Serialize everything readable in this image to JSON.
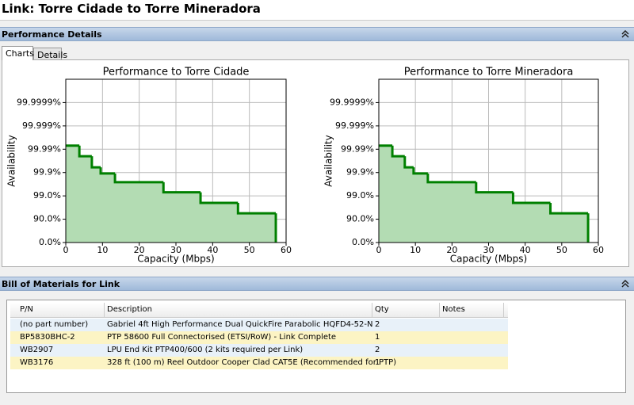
{
  "header": {
    "title": "Link: Torre Cidade to Torre Mineradora"
  },
  "sections": [
    {
      "title": "Performance Details"
    },
    {
      "title": "Bill of Materials for Link"
    }
  ],
  "tabs": [
    "Charts",
    "Details"
  ],
  "chart_data": [
    {
      "type": "line",
      "step": "post",
      "title": "Performance to Torre Cidade",
      "x_label": "Capacity (Mbps)",
      "y_label": "Availability",
      "yscale": "unavailability-log",
      "x": [
        0,
        3.7,
        7.1,
        9.5,
        13.4,
        26.6,
        36.7,
        46.9,
        57.2
      ],
      "series": [
        {
          "color": "#008000",
          "fill": "#b3dcb3",
          "values": [
            99.993,
            99.98,
            99.94,
            99.89,
            99.74,
            99.3,
            98.0,
            94.4,
            0
          ]
        }
      ],
      "xlim": [
        0,
        60
      ],
      "xticks": [
        0,
        10,
        20,
        30,
        40,
        50,
        60
      ],
      "ylim": [
        0,
        99.99999
      ],
      "yticks": [
        {
          "value": 0,
          "label": "0.0%"
        },
        {
          "value": 90,
          "label": "90.0%"
        },
        {
          "value": 99,
          "label": "99.0%"
        },
        {
          "value": 99.9,
          "label": "99.9%"
        },
        {
          "value": 99.99,
          "label": "99.99%"
        },
        {
          "value": 99.999,
          "label": "99.999%"
        },
        {
          "value": 99.9999,
          "label": "99.9999%"
        }
      ],
      "grid": true
    },
    {
      "type": "line",
      "step": "post",
      "title": "Performance to Torre Mineradora",
      "x_label": "Capacity (Mbps)",
      "y_label": "Availability",
      "yscale": "unavailability-log",
      "x": [
        0,
        3.7,
        7.1,
        9.5,
        13.4,
        26.6,
        36.7,
        46.9,
        57.2
      ],
      "series": [
        {
          "color": "#008000",
          "fill": "#b3dcb3",
          "values": [
            99.993,
            99.98,
            99.94,
            99.89,
            99.74,
            99.3,
            98.0,
            94.4,
            0
          ]
        }
      ],
      "xlim": [
        0,
        60
      ],
      "xticks": [
        0,
        10,
        20,
        30,
        40,
        50,
        60
      ],
      "ylim": [
        0,
        99.99999
      ],
      "yticks": [
        {
          "value": 0,
          "label": "0.0%"
        },
        {
          "value": 90,
          "label": "90.0%"
        },
        {
          "value": 99,
          "label": "99.0%"
        },
        {
          "value": 99.9,
          "label": "99.9%"
        },
        {
          "value": 99.99,
          "label": "99.99%"
        },
        {
          "value": 99.999,
          "label": "99.999%"
        },
        {
          "value": 99.9999,
          "label": "99.9999%"
        }
      ],
      "grid": true
    }
  ],
  "table": {
    "columns": [
      "P/N",
      "Description",
      "Qty",
      "Notes"
    ],
    "rows": [
      [
        "(no part number)",
        "Gabriel 4ft High Performance Dual QuickFire Parabolic HQFD4-52-N",
        "2"
      ],
      [
        "BP5830BHC-2",
        "PTP 58600 Full Connectorised (ETSI/RoW) - Link Complete",
        "1"
      ],
      [
        "WB2907",
        "LPU End Kit PTP400/600 (2 kits required per Link)",
        "2"
      ],
      [
        "WB3176",
        "328 ft (100 m) Reel Outdoor Cooper Clad CAT5E (Recommended for PTP)",
        "1"
      ]
    ]
  }
}
